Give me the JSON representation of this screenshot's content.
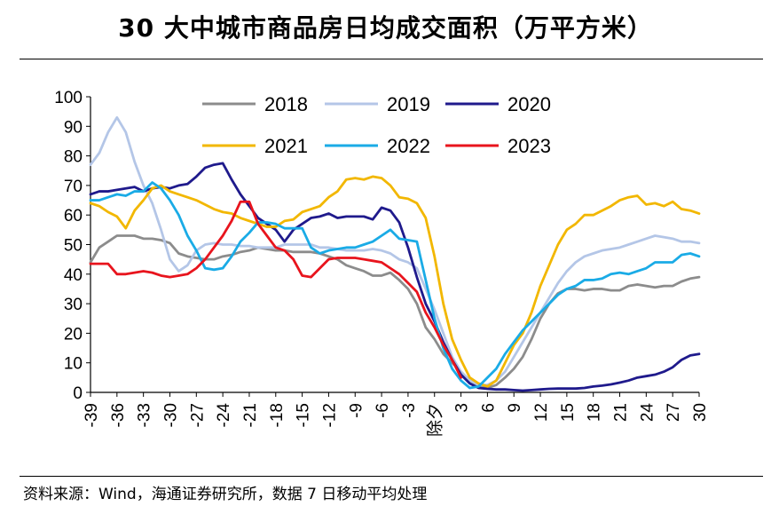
{
  "title": "30 大中城市商品房日均成交面积（万平方米）",
  "source": "资料来源：Wind，海通证券研究所，数据 7 日移动平均处理",
  "chart_data": {
    "type": "line",
    "title": "30 大中城市商品房日均成交面积（万平方米）",
    "xlabel": "",
    "ylabel": "",
    "ylim": [
      0,
      100
    ],
    "yticks": [
      0,
      10,
      20,
      30,
      40,
      50,
      60,
      70,
      80,
      90,
      100
    ],
    "xlim": [
      -39,
      30
    ],
    "xtick_labels": [
      "-39",
      "-36",
      "-33",
      "-30",
      "-27",
      "-24",
      "-21",
      "-18",
      "-15",
      "-12",
      "-9",
      "-6",
      "-3",
      "除夕",
      "3",
      "6",
      "9",
      "12",
      "15",
      "18",
      "21",
      "24",
      "27",
      "30"
    ],
    "grid": false,
    "legend_position": "top",
    "series": [
      {
        "name": "2018",
        "color": "#8c8c8c",
        "x": [
          -39,
          -38,
          -37,
          -36,
          -35,
          -34,
          -33,
          -32,
          -31,
          -30,
          -29,
          -28,
          -27,
          -26,
          -25,
          -24,
          -23,
          -22,
          -21,
          -20,
          -19,
          -18,
          -17,
          -16,
          -15,
          -14,
          -13,
          -12,
          -11,
          -10,
          -9,
          -8,
          -7,
          -6,
          -5,
          -4,
          -3,
          -2,
          -1,
          0,
          1,
          2,
          3,
          4,
          5,
          6,
          7,
          8,
          9,
          10,
          11,
          12,
          13,
          14,
          15,
          16,
          17,
          18,
          19,
          20,
          21,
          22,
          23,
          24,
          25,
          26,
          27,
          28,
          29,
          30
        ],
        "values": [
          44,
          49,
          51,
          53,
          53,
          53,
          52,
          52,
          51.5,
          50.5,
          47,
          46,
          45.5,
          45,
          45,
          46,
          46.5,
          47.5,
          48,
          49,
          48.5,
          48,
          48,
          47.5,
          47.5,
          47.5,
          47,
          46,
          45,
          43,
          42,
          41,
          39.5,
          39.5,
          40.5,
          38,
          35,
          30,
          22,
          18,
          13,
          10,
          7,
          4,
          2,
          1.5,
          2.5,
          5,
          8,
          12,
          18,
          25,
          30,
          33.5,
          35,
          35,
          34.5,
          35,
          35,
          34.5,
          34.5,
          36,
          36.5,
          36,
          35.5,
          36,
          36,
          37.5,
          38.5,
          39
        ]
      },
      {
        "name": "2019",
        "color": "#b4c6e7",
        "x": [
          -39,
          -38,
          -37,
          -36,
          -35,
          -34,
          -33,
          -32,
          -31,
          -30,
          -29,
          -28,
          -27,
          -26,
          -25,
          -24,
          -23,
          -22,
          -21,
          -20,
          -19,
          -18,
          -17,
          -16,
          -15,
          -14,
          -13,
          -12,
          -11,
          -10,
          -9,
          -8,
          -7,
          -6,
          -5,
          -4,
          -3,
          -2,
          -1,
          0,
          1,
          2,
          3,
          4,
          5,
          6,
          7,
          8,
          9,
          10,
          11,
          12,
          13,
          14,
          15,
          16,
          17,
          18,
          19,
          20,
          21,
          22,
          23,
          24,
          25,
          26,
          27,
          28,
          29,
          30
        ],
        "values": [
          77,
          81,
          88,
          93,
          88,
          78,
          70,
          64,
          55,
          45,
          41,
          43,
          48,
          50,
          50.5,
          50,
          50,
          49.5,
          49.5,
          49,
          49,
          49,
          50,
          50,
          50,
          50,
          49,
          49,
          48.5,
          48,
          48,
          48,
          48.5,
          48,
          47,
          45,
          44,
          42,
          35,
          28,
          20,
          12,
          7,
          4,
          2.5,
          2.5,
          4,
          7,
          12,
          17,
          22,
          27,
          32,
          37,
          41,
          44,
          46,
          47,
          48,
          48.5,
          49,
          50,
          51,
          52,
          53,
          52.5,
          52,
          51,
          51,
          50.5
        ]
      },
      {
        "name": "2020",
        "color": "#1f1a8c",
        "x": [
          -39,
          -38,
          -37,
          -36,
          -35,
          -34,
          -33,
          -32,
          -31,
          -30,
          -29,
          -28,
          -27,
          -26,
          -25,
          -24,
          -23,
          -22,
          -21,
          -20,
          -19,
          -18,
          -17,
          -16,
          -15,
          -14,
          -13,
          -12,
          -11,
          -10,
          -9,
          -8,
          -7,
          -6,
          -5,
          -4,
          -3,
          -2,
          -1,
          0,
          1,
          2,
          3,
          4,
          5,
          6,
          7,
          8,
          9,
          10,
          11,
          12,
          13,
          14,
          15,
          16,
          17,
          18,
          19,
          20,
          21,
          22,
          23,
          24,
          25,
          26,
          27,
          28,
          29,
          30
        ],
        "values": [
          67,
          68,
          68,
          68.5,
          69,
          69.5,
          68,
          69,
          69.5,
          69,
          70,
          70.5,
          73,
          76,
          77,
          77.5,
          72,
          67,
          63,
          59,
          57,
          55,
          51,
          55,
          57,
          59,
          59.5,
          60.5,
          59,
          59.5,
          59.5,
          59.5,
          58.5,
          62.5,
          61.5,
          57.5,
          49,
          39,
          30,
          24,
          17,
          11,
          6,
          3,
          1.5,
          1.2,
          1,
          1,
          0.8,
          0.6,
          0.8,
          1,
          1.2,
          1.3,
          1.3,
          1.3,
          1.5,
          2,
          2.3,
          2.7,
          3.3,
          4,
          5,
          5.5,
          6,
          7,
          8.5,
          11,
          12.5,
          13
        ]
      },
      {
        "name": "2021",
        "color": "#f2b700",
        "x": [
          -39,
          -38,
          -37,
          -36,
          -35,
          -34,
          -33,
          -32,
          -31,
          -30,
          -29,
          -28,
          -27,
          -26,
          -25,
          -24,
          -23,
          -22,
          -21,
          -20,
          -19,
          -18,
          -17,
          -16,
          -15,
          -14,
          -13,
          -12,
          -11,
          -10,
          -9,
          -8,
          -7,
          -6,
          -5,
          -4,
          -3,
          -2,
          -1,
          0,
          1,
          2,
          3,
          4,
          5,
          6,
          7,
          8,
          9,
          10,
          11,
          12,
          13,
          14,
          15,
          16,
          17,
          18,
          19,
          20,
          21,
          22,
          23,
          24,
          25,
          26,
          27,
          28,
          29,
          30
        ],
        "values": [
          64,
          63,
          61,
          59.5,
          55.5,
          61.5,
          65,
          69,
          70,
          68,
          67,
          66,
          65,
          63.5,
          62,
          61,
          60.5,
          59,
          58,
          57,
          56,
          56,
          58,
          58.5,
          61,
          62,
          63,
          66,
          68,
          72,
          72.5,
          72,
          73,
          72.5,
          70,
          66,
          65.5,
          64,
          59,
          46,
          30,
          18,
          11,
          5,
          3,
          2,
          4,
          10,
          16,
          20,
          27,
          36,
          43,
          50,
          55,
          57,
          60,
          60,
          61.5,
          63,
          65,
          66,
          66.5,
          63.5,
          64,
          63,
          64.5,
          62,
          61.5,
          60.5
        ]
      },
      {
        "name": "2022",
        "color": "#1aabe6",
        "x": [
          -39,
          -38,
          -37,
          -36,
          -35,
          -34,
          -33,
          -32,
          -31,
          -30,
          -29,
          -28,
          -27,
          -26,
          -25,
          -24,
          -23,
          -22,
          -21,
          -20,
          -19,
          -18,
          -17,
          -16,
          -15,
          -14,
          -13,
          -12,
          -11,
          -10,
          -9,
          -8,
          -7,
          -6,
          -5,
          -4,
          -3,
          -2,
          -1,
          0,
          1,
          2,
          3,
          4,
          5,
          6,
          7,
          8,
          9,
          10,
          11,
          12,
          13,
          14,
          15,
          16,
          17,
          18,
          19,
          20,
          21,
          22,
          23,
          24,
          25,
          26,
          27,
          28,
          29,
          30
        ],
        "values": [
          65,
          65,
          66,
          67,
          66.5,
          68,
          68,
          71,
          69,
          65,
          60,
          53,
          48,
          42,
          41.5,
          42,
          46,
          51,
          54,
          57.5,
          57.5,
          57,
          55.5,
          55.5,
          55.5,
          49,
          47,
          48,
          48.5,
          49,
          49,
          50,
          51,
          53,
          55,
          52,
          51.5,
          51,
          38,
          25,
          15,
          8,
          4,
          1.5,
          2,
          5,
          8,
          13,
          17,
          21,
          24,
          27,
          30,
          33,
          35,
          36,
          38,
          38,
          38.5,
          40,
          40.5,
          40,
          41,
          42,
          44,
          44,
          44,
          46.5,
          47,
          46
        ]
      },
      {
        "name": "2023",
        "color": "#e8141d",
        "x": [
          -39,
          -38,
          -37,
          -36,
          -35,
          -34,
          -33,
          -32,
          -31,
          -30,
          -29,
          -28,
          -27,
          -26,
          -25,
          -24,
          -23,
          -22,
          -21,
          -20,
          -19,
          -18,
          -17,
          -16,
          -15,
          -14,
          -13,
          -12,
          -11,
          -10,
          -9,
          -8,
          -7,
          -6,
          -5,
          -4,
          -3,
          -2,
          -1,
          0,
          1,
          2,
          3
        ],
        "values": [
          43.5,
          43.5,
          43.5,
          40,
          40,
          40.5,
          41,
          40.5,
          39.5,
          39,
          39.5,
          40,
          42,
          45,
          49,
          53,
          58,
          64.5,
          64.5,
          57,
          53,
          49,
          48,
          45,
          39.5,
          39,
          42,
          45,
          45.5,
          45.5,
          45.5,
          45,
          44.5,
          44,
          42,
          40,
          37,
          34,
          27,
          22,
          16,
          11,
          5
        ]
      }
    ]
  }
}
